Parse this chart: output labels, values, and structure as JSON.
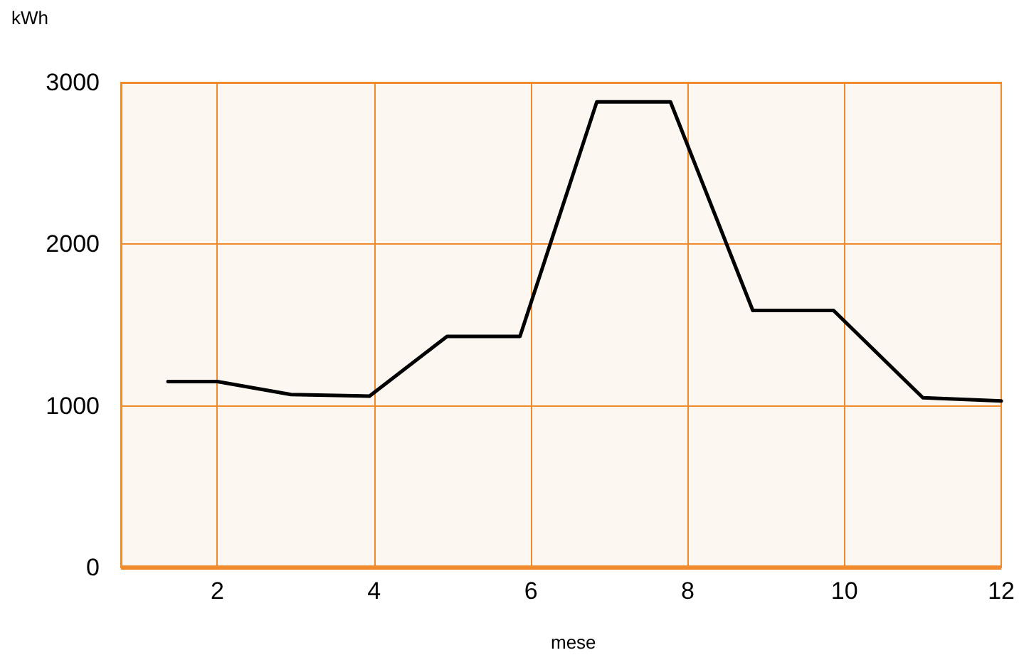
{
  "chart_data": {
    "type": "line",
    "xlabel": "mese",
    "ylabel": "kWh",
    "x": [
      1.37,
      2,
      2.94,
      3.94,
      4.93,
      5.86,
      6.84,
      7.78,
      8.83,
      9.86,
      11.0,
      12
    ],
    "series": [
      {
        "color": "#000000",
        "values": [
          1150,
          1150,
          1070,
          1060,
          1430,
          1430,
          2880,
          2880,
          1590,
          1590,
          1050,
          1030
        ]
      }
    ],
    "xlim": [
      0.77,
      12
    ],
    "xticks": [
      2,
      4,
      6,
      8,
      10,
      12
    ],
    "ylim": [
      0,
      3000
    ],
    "yticks": [
      0,
      1000,
      2000,
      3000
    ],
    "grid": true,
    "marker": "none",
    "line_style": "solid"
  }
}
